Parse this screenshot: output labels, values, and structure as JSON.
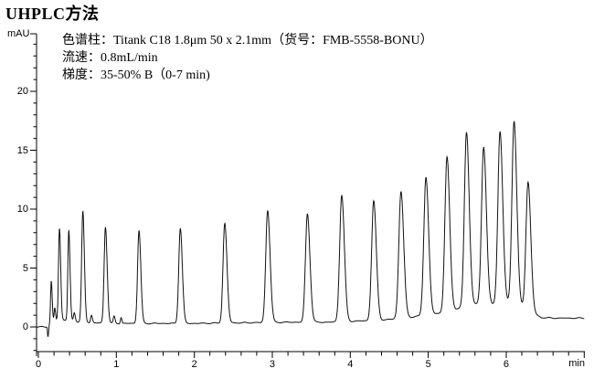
{
  "page": {
    "title": "UHPLC方法"
  },
  "method": {
    "column": "色谱柱：Titank C18 1.8μm 50 x 2.1mm（货号：FMB-5558-BONU）",
    "flow_rate": "流速：0.8mL/min",
    "gradient": "梯度：35-50% B（0-7 min)"
  },
  "chart_data": {
    "type": "line",
    "title": "UHPLC方法",
    "xlabel": "min",
    "ylabel": "mAU",
    "xlim": [
      0,
      7
    ],
    "ylim": [
      -2.1,
      24.9
    ],
    "x_ticks": [
      0,
      1,
      2,
      3,
      4,
      5,
      6
    ],
    "x_axis_end": 7,
    "x_minor_step": 0.2,
    "y_ticks": [
      0,
      5,
      10,
      15,
      20
    ],
    "y_minor_step": 1,
    "y_minor_range": [
      -2,
      24
    ],
    "grid": false,
    "legend": "none",
    "trace_color": "#111111",
    "baseline": [
      [
        0.0,
        0.0
      ],
      [
        0.1,
        0.0
      ],
      [
        0.14,
        0.2
      ],
      [
        0.2,
        0.5
      ],
      [
        0.32,
        0.6
      ],
      [
        0.5,
        0.45
      ],
      [
        0.7,
        0.35
      ],
      [
        1.0,
        0.3
      ],
      [
        1.5,
        0.3
      ],
      [
        2.0,
        0.3
      ],
      [
        2.6,
        0.35
      ],
      [
        3.2,
        0.4
      ],
      [
        3.7,
        0.4
      ],
      [
        4.1,
        0.5
      ],
      [
        4.45,
        0.6
      ],
      [
        4.8,
        0.85
      ],
      [
        5.1,
        1.1
      ],
      [
        5.36,
        1.5
      ],
      [
        5.6,
        1.9
      ],
      [
        5.82,
        1.9
      ],
      [
        6.0,
        2.0
      ],
      [
        6.18,
        1.8
      ],
      [
        6.32,
        1.2
      ],
      [
        6.45,
        0.8
      ],
      [
        6.6,
        0.75
      ],
      [
        7.0,
        0.75
      ]
    ],
    "peaks": [
      {
        "rt": 0.165,
        "apex": 3.9,
        "width": 0.009
      },
      {
        "rt": 0.27,
        "apex": 8.4,
        "width": 0.012
      },
      {
        "rt": 0.39,
        "apex": 8.2,
        "width": 0.012
      },
      {
        "rt": 0.57,
        "apex": 9.8,
        "width": 0.015
      },
      {
        "rt": 0.86,
        "apex": 8.5,
        "width": 0.017
      },
      {
        "rt": 1.29,
        "apex": 8.2,
        "width": 0.018
      },
      {
        "rt": 1.82,
        "apex": 8.4,
        "width": 0.02
      },
      {
        "rt": 2.39,
        "apex": 8.8,
        "width": 0.022
      },
      {
        "rt": 2.94,
        "apex": 9.9,
        "width": 0.024
      },
      {
        "rt": 3.45,
        "apex": 9.6,
        "width": 0.025
      },
      {
        "rt": 3.89,
        "apex": 11.2,
        "width": 0.026
      },
      {
        "rt": 4.3,
        "apex": 10.7,
        "width": 0.026
      },
      {
        "rt": 4.65,
        "apex": 11.5,
        "width": 0.027
      },
      {
        "rt": 4.97,
        "apex": 12.7,
        "width": 0.027
      },
      {
        "rt": 5.24,
        "apex": 14.4,
        "width": 0.027
      },
      {
        "rt": 5.49,
        "apex": 16.5,
        "width": 0.027
      },
      {
        "rt": 5.71,
        "apex": 15.3,
        "width": 0.027
      },
      {
        "rt": 5.92,
        "apex": 16.6,
        "width": 0.027
      },
      {
        "rt": 6.1,
        "apex": 17.5,
        "width": 0.027
      },
      {
        "rt": 6.28,
        "apex": 12.3,
        "width": 0.027
      }
    ],
    "minor_features": [
      {
        "rt": 0.123,
        "apex": -0.8,
        "width": 0.006
      },
      {
        "rt": 0.21,
        "apex": 1.6,
        "width": 0.008
      },
      {
        "rt": 0.46,
        "apex": 1.2,
        "width": 0.01
      },
      {
        "rt": 0.68,
        "apex": 1.0,
        "width": 0.01
      },
      {
        "rt": 0.97,
        "apex": 0.9,
        "width": 0.01
      },
      {
        "rt": 1.06,
        "apex": 0.8,
        "width": 0.008
      }
    ]
  }
}
